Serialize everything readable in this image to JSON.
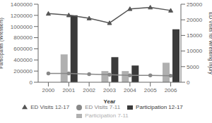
{
  "chart_data": {
    "type": "bar",
    "categories": [
      "2000",
      "2001",
      "2002",
      "2003",
      "2004",
      "2005",
      "2006"
    ],
    "xlabel": "Year",
    "ylabel": "Participants (Wrestlers)",
    "y2label": "ED Visits for Wrestling Injury",
    "ylim": [
      0,
      1400000
    ],
    "yticks": [
      0,
      200000,
      400000,
      600000,
      800000,
      1000000,
      1200000,
      1400000
    ],
    "y2lim": [
      0,
      25000
    ],
    "y2ticks": [
      0,
      5000,
      10000,
      15000,
      20000,
      25000
    ],
    "grid": false,
    "legend": "bottom",
    "series": [
      {
        "name": "Participation 7-11",
        "type": "bar",
        "color": "#b0b0b0",
        "values": [
          0,
          500000,
          0,
          200000,
          200000,
          0,
          350000
        ]
      },
      {
        "name": "Participation 12-17",
        "type": "bar",
        "color": "#3a3a3a",
        "values": [
          0,
          1200000,
          0,
          450000,
          300000,
          0,
          950000
        ]
      },
      {
        "name": "ED Visits 7-11",
        "type": "line",
        "axis": "y2",
        "color": "#888888",
        "marker": "circle",
        "values": [
          2800,
          2800,
          2600,
          2400,
          2200,
          2200,
          2100
        ]
      },
      {
        "name": "ED Visits 12-17",
        "type": "line",
        "axis": "y2",
        "color": "#555555",
        "marker": "triangle",
        "values": [
          22000,
          21500,
          20500,
          19000,
          23500,
          24000,
          23000
        ]
      }
    ]
  }
}
